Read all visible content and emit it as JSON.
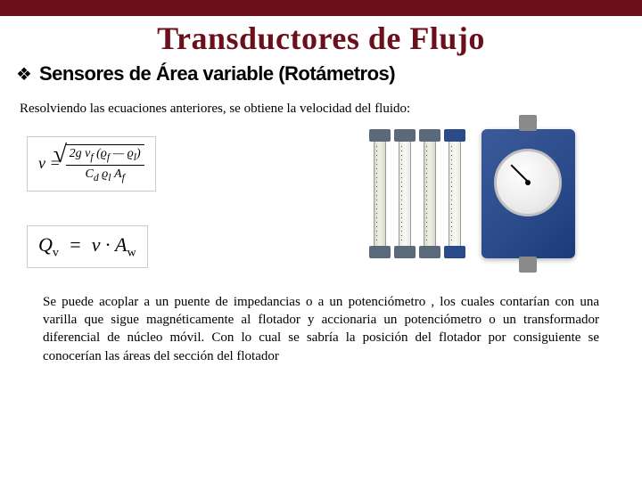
{
  "topbar_color": "#6b0f1a",
  "title": "Transductores de Flujo",
  "bullet_glyph": "❖",
  "subtitle": "Sensores de Área variable (Rotámetros)",
  "intro": "Resolviendo las ecuaciones anteriores, se obtiene la velocidad del fluido:",
  "equation1": {
    "lhs": "v",
    "numerator": "2g v_f (ϱ_f — ϱ_l)",
    "denominator": "C_d ϱ_l A_f"
  },
  "equation2": {
    "text": "Q_v  =  v · A_w"
  },
  "rotameters": {
    "tube_count": 4,
    "tube_cap_colors": [
      "#5a6a7a",
      "#5a6a7a",
      "#5a6a7a",
      "#2a4a8a"
    ],
    "meter_body_color": "#2a4a8a",
    "meter_face_color": "#ffffff"
  },
  "footer_text": "Se puede acoplar a un puente de impedancias o a un potenciómetro , los cuales contarían con una varilla que sigue magnéticamente al flotador  y accionaria un potenciómetro o un transformador diferencial de núcleo móvil. Con  lo cual se sabría la posición del flotador por consiguiente  se conocerían las áreas del sección del flotador"
}
